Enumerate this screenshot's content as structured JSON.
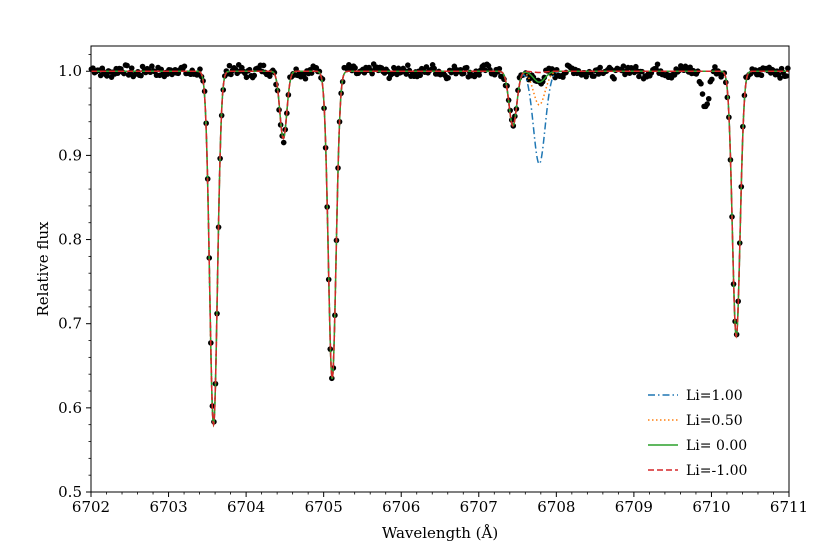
{
  "chart_data": {
    "type": "line",
    "xlabel": "Wavelength (Å)",
    "ylabel": "Relative flux",
    "xlim": [
      6702,
      6711
    ],
    "ylim": [
      0.5,
      1.03
    ],
    "x_ticks": [
      "6702",
      "6703",
      "6704",
      "6705",
      "6706",
      "6707",
      "6708",
      "6709",
      "6710",
      "6711"
    ],
    "y_ticks": [
      "0.5",
      "0.6",
      "0.7",
      "0.8",
      "0.9",
      "1.0"
    ],
    "grid": false,
    "legend_position": "bottom-right",
    "continuum": 1.0,
    "absorption_lines": [
      {
        "center": 6703.58,
        "depth": 0.42,
        "width": 0.05
      },
      {
        "center": 6704.48,
        "depth": 0.08,
        "width": 0.045
      },
      {
        "center": 6705.11,
        "depth": 0.365,
        "width": 0.05
      },
      {
        "center": 6707.44,
        "depth": 0.065,
        "width": 0.05
      },
      {
        "center": 6710.32,
        "depth": 0.315,
        "width": 0.05
      }
    ],
    "series": [
      {
        "name": "Li=1.00",
        "color": "#1f77b4",
        "style": "dashdot",
        "li_line": {
          "center": 6707.78,
          "depth": 0.11,
          "width": 0.075
        }
      },
      {
        "name": "Li=0.50",
        "color": "#ff7f0e",
        "style": "dotted",
        "li_line": {
          "center": 6707.78,
          "depth": 0.04,
          "width": 0.075
        }
      },
      {
        "name": "Li= 0.00",
        "color": "#2ca02c",
        "style": "solid",
        "li_line": {
          "center": 6707.78,
          "depth": 0.013,
          "width": 0.075
        }
      },
      {
        "name": "Li=-1.00",
        "color": "#d62728",
        "style": "dashed",
        "li_line": {
          "center": 6707.78,
          "depth": 0.0015,
          "width": 0.075
        }
      }
    ],
    "observed": {
      "color": "#000000",
      "x_step": 0.02,
      "dips": [
        {
          "center": 6709.93,
          "depth": 0.045,
          "width": 0.04
        }
      ]
    }
  }
}
